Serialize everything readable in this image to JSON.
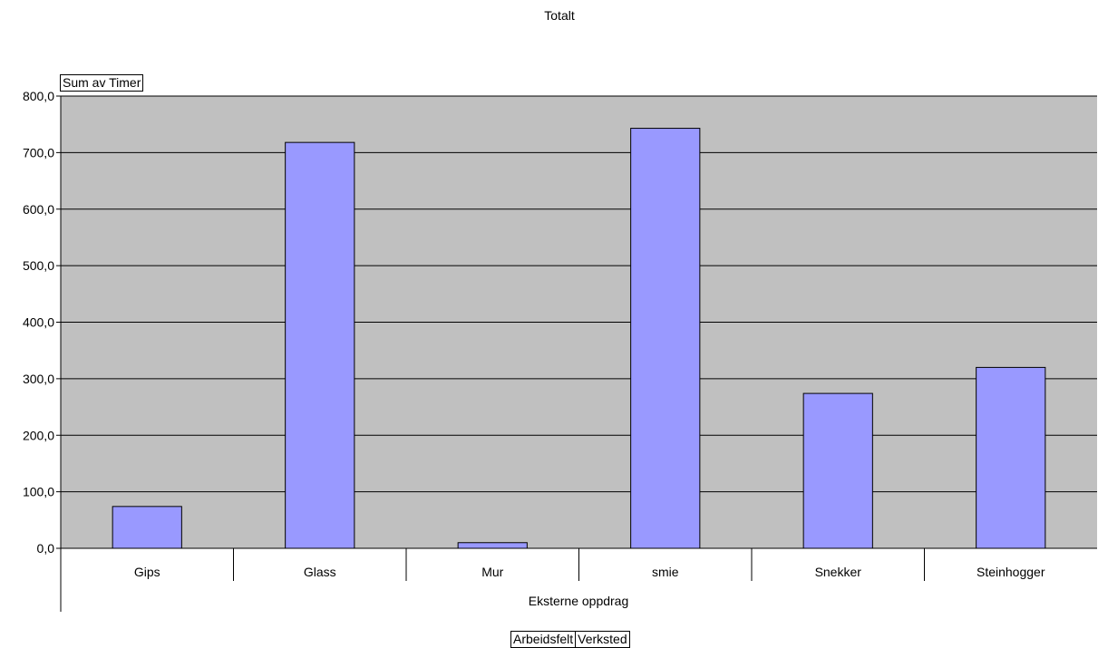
{
  "chart_data": {
    "type": "bar",
    "title": "Totalt",
    "data_field_label": "Sum av Timer",
    "group_label": "Eksterne oppdrag",
    "row_fields": [
      "Arbeidsfelt",
      "Verksted"
    ],
    "categories": [
      "Gips",
      "Glass",
      "Mur",
      "smie",
      "Snekker",
      "Steinhogger"
    ],
    "values": [
      74,
      718,
      10,
      743,
      274,
      320
    ],
    "yticks": [
      "0,0",
      "100,0",
      "200,0",
      "300,0",
      "400,0",
      "500,0",
      "600,0",
      "700,0",
      "800,0"
    ],
    "ylim": [
      0,
      800
    ],
    "grid": true,
    "legend": "none",
    "colors": {
      "plot_bg": "#c0c0c0",
      "bar_fill": "#9999ff",
      "bar_stroke": "#000000"
    }
  }
}
